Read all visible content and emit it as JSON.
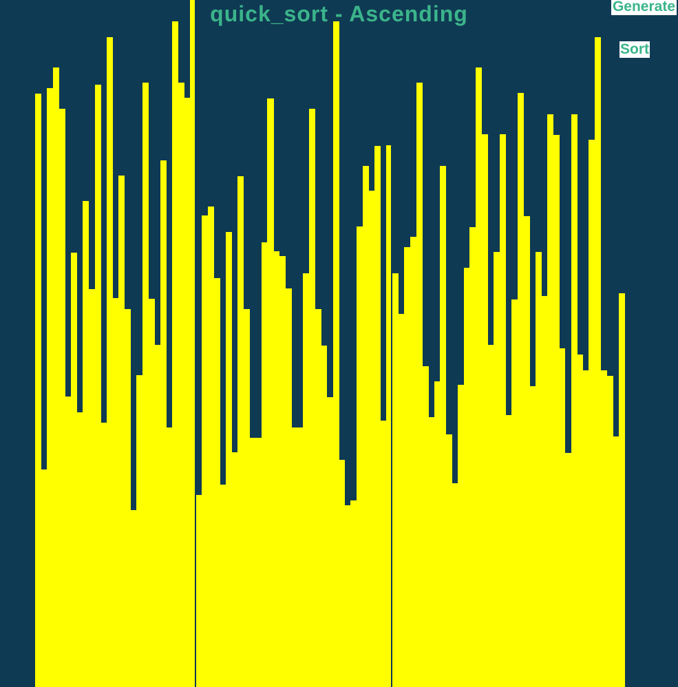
{
  "title": "quick_sort - Ascending",
  "buttons": {
    "generate_label": "Generate",
    "sort_label": "Sort"
  },
  "colors": {
    "background": "#0f3a53",
    "bar": "#ffff00",
    "accent": "#3bb48b",
    "button_bg": "#ffffff"
  },
  "array": {
    "max_value": 1000,
    "values": [
      136,
      683,
      128,
      98,
      158,
      577,
      368,
      600,
      293,
      421,
      123,
      615,
      54,
      434,
      255,
      450,
      742,
      546,
      120,
      435,
      502,
      233,
      622,
      31,
      120,
      142,
      0,
      720,
      314,
      301,
      405,
      705,
      338,
      658,
      256,
      450,
      637,
      637,
      353,
      143,
      366,
      373,
      420,
      622,
      622,
      398,
      158,
      450,
      503,
      578,
      31,
      669,
      735,
      728,
      330,
      241,
      278,
      212,
      612,
      211,
      398,
      457,
      360,
      345,
      120,
      533,
      607,
      555,
      241,
      632,
      703,
      560,
      390,
      331,
      98,
      195,
      502,
      367,
      195,
      604,
      436,
      135,
      315,
      562,
      367,
      431,
      166,
      196,
      507,
      659,
      166,
      516,
      539,
      203,
      54,
      539,
      547,
      635,
      427
    ],
    "gaps_after": [
      26,
      59
    ]
  }
}
